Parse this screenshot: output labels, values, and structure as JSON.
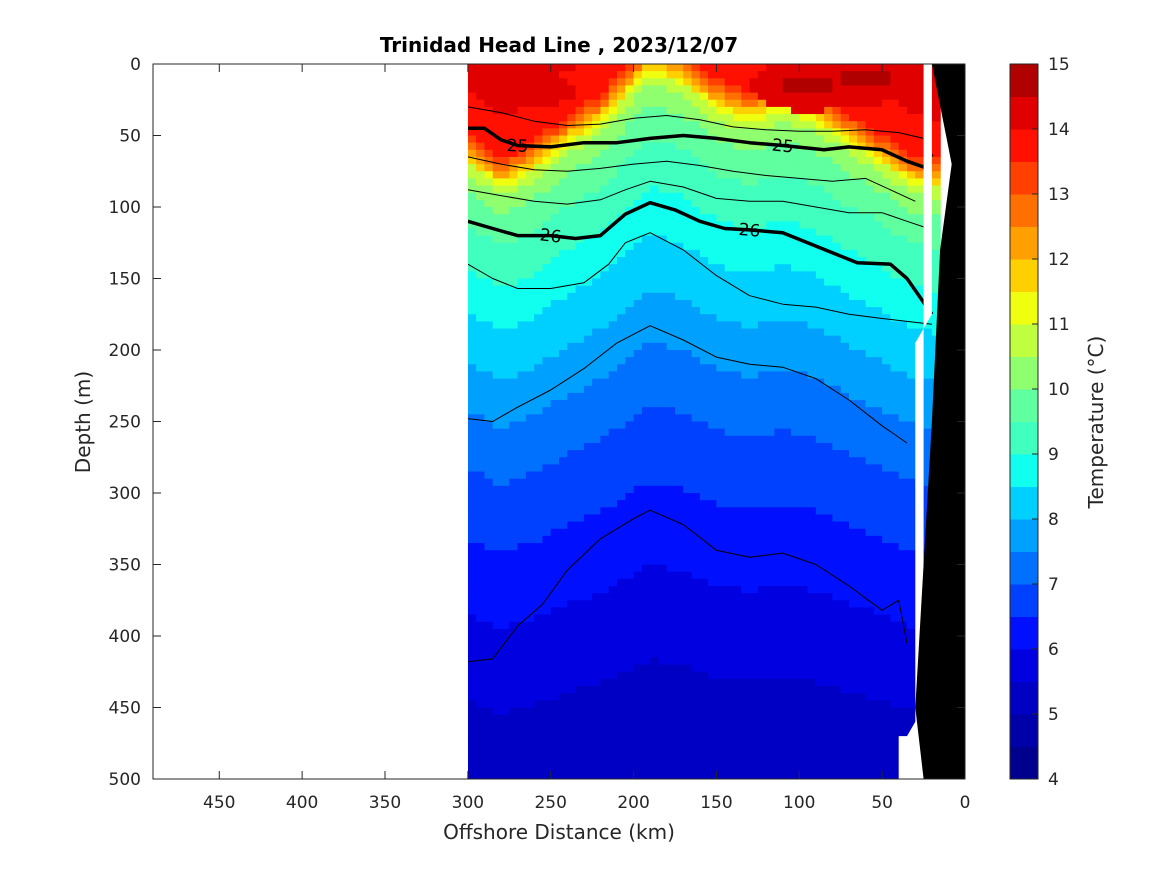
{
  "chart_data": {
    "type": "heatmap",
    "title": "Trinidad Head Line , 2023/12/07",
    "xlabel": "Offshore Distance (km)",
    "ylabel": "Depth (m)",
    "colorbar_label": "Temperature (°C)",
    "xlim": [
      490,
      0
    ],
    "ylim": [
      0,
      500
    ],
    "x_reversed": true,
    "y_reversed": true,
    "xticks": [
      450,
      400,
      350,
      300,
      250,
      200,
      150,
      100,
      50,
      0
    ],
    "yticks": [
      0,
      50,
      100,
      150,
      200,
      250,
      300,
      350,
      400,
      450,
      500
    ],
    "colorbar_range": [
      4,
      15
    ],
    "colorbar_ticks": [
      4,
      5,
      6,
      7,
      8,
      9,
      10,
      11,
      12,
      13,
      14,
      15
    ],
    "data_extent_km": [
      300,
      20
    ],
    "colormap_levels": [
      {
        "value": 4.0,
        "color": "#00008f"
      },
      {
        "value": 4.5,
        "color": "#0000a8"
      },
      {
        "value": 5.0,
        "color": "#0000c4"
      },
      {
        "value": 5.5,
        "color": "#0000e0"
      },
      {
        "value": 6.0,
        "color": "#0010ff"
      },
      {
        "value": 6.5,
        "color": "#0040ff"
      },
      {
        "value": 7.0,
        "color": "#0070ff"
      },
      {
        "value": 7.5,
        "color": "#00a0ff"
      },
      {
        "value": 8.0,
        "color": "#00d0ff"
      },
      {
        "value": 8.5,
        "color": "#10ffef"
      },
      {
        "value": 9.0,
        "color": "#40ffbf"
      },
      {
        "value": 9.5,
        "color": "#60ff9f"
      },
      {
        "value": 10.0,
        "color": "#90ff6f"
      },
      {
        "value": 10.5,
        "color": "#c0ff3f"
      },
      {
        "value": 11.0,
        "color": "#f0ff0f"
      },
      {
        "value": 11.5,
        "color": "#ffd000"
      },
      {
        "value": 12.0,
        "color": "#ffa000"
      },
      {
        "value": 12.5,
        "color": "#ff7000"
      },
      {
        "value": 13.0,
        "color": "#ff4000"
      },
      {
        "value": 13.5,
        "color": "#ff1000"
      },
      {
        "value": 14.0,
        "color": "#e00000"
      },
      {
        "value": 14.5,
        "color": "#b00000"
      }
    ],
    "temperature_profile": [
      {
        "depth": 0,
        "temp": 14.0
      },
      {
        "depth": 30,
        "temp": 13.6
      },
      {
        "depth": 40,
        "temp": 12.6
      },
      {
        "depth": 46,
        "temp": 11.8
      },
      {
        "depth": 52,
        "temp": 11.0
      },
      {
        "depth": 60,
        "temp": 10.4
      },
      {
        "depth": 75,
        "temp": 9.9
      },
      {
        "depth": 95,
        "temp": 9.5
      },
      {
        "depth": 120,
        "temp": 9.1
      },
      {
        "depth": 150,
        "temp": 8.6
      },
      {
        "depth": 180,
        "temp": 8.2
      },
      {
        "depth": 220,
        "temp": 7.6
      },
      {
        "depth": 260,
        "temp": 7.1
      },
      {
        "depth": 300,
        "temp": 6.7
      },
      {
        "depth": 350,
        "temp": 6.2
      },
      {
        "depth": 400,
        "temp": 5.8
      },
      {
        "depth": 450,
        "temp": 5.4
      },
      {
        "depth": 500,
        "temp": 5.0
      }
    ],
    "thermocline_offset": [
      {
        "x": 300,
        "dz": 20
      },
      {
        "x": 280,
        "dz": 40
      },
      {
        "x": 260,
        "dz": 25
      },
      {
        "x": 240,
        "dz": 5
      },
      {
        "x": 220,
        "dz": -10
      },
      {
        "x": 200,
        "dz": -35
      },
      {
        "x": 190,
        "dz": -45
      },
      {
        "x": 170,
        "dz": -38
      },
      {
        "x": 150,
        "dz": -20
      },
      {
        "x": 130,
        "dz": -12
      },
      {
        "x": 110,
        "dz": -20
      },
      {
        "x": 90,
        "dz": -12
      },
      {
        "x": 70,
        "dz": 5
      },
      {
        "x": 50,
        "dz": 20
      },
      {
        "x": 35,
        "dz": 35
      },
      {
        "x": 20,
        "dz": 40
      }
    ],
    "warm_patches": [
      {
        "x": 260,
        "depth": 18,
        "temp": 14.3
      },
      {
        "x": 95,
        "depth": 15,
        "temp": 14.6
      },
      {
        "x": 60,
        "depth": 10,
        "temp": 14.6
      }
    ],
    "sigma_contours": [
      {
        "label": "25",
        "bold": true,
        "points": [
          [
            300,
            45
          ],
          [
            290,
            45
          ],
          [
            280,
            53
          ],
          [
            270,
            57
          ],
          [
            250,
            58
          ],
          [
            230,
            55
          ],
          [
            210,
            55
          ],
          [
            190,
            52
          ],
          [
            170,
            50
          ],
          [
            150,
            52
          ],
          [
            130,
            55
          ],
          [
            110,
            57
          ],
          [
            85,
            60
          ],
          [
            70,
            58
          ],
          [
            50,
            60
          ],
          [
            35,
            68
          ],
          [
            25,
            72
          ],
          [
            20,
            63
          ]
        ]
      },
      {
        "label": "26",
        "bold": true,
        "points": [
          [
            300,
            110
          ],
          [
            285,
            115
          ],
          [
            270,
            120
          ],
          [
            250,
            120
          ],
          [
            235,
            122
          ],
          [
            220,
            120
          ],
          [
            205,
            105
          ],
          [
            190,
            97
          ],
          [
            175,
            102
          ],
          [
            160,
            110
          ],
          [
            145,
            115
          ],
          [
            130,
            116
          ],
          [
            110,
            118
          ],
          [
            95,
            125
          ],
          [
            80,
            132
          ],
          [
            65,
            139
          ],
          [
            45,
            140
          ],
          [
            35,
            150
          ],
          [
            20,
            175
          ]
        ]
      },
      {
        "label": "",
        "bold": false,
        "points": [
          [
            300,
            30
          ],
          [
            280,
            34
          ],
          [
            260,
            40
          ],
          [
            240,
            43
          ],
          [
            220,
            42
          ],
          [
            200,
            38
          ],
          [
            180,
            36
          ],
          [
            160,
            39
          ],
          [
            140,
            44
          ],
          [
            120,
            46
          ],
          [
            100,
            47
          ],
          [
            80,
            47
          ],
          [
            60,
            46
          ],
          [
            40,
            48
          ],
          [
            25,
            52
          ]
        ]
      },
      {
        "label": "",
        "bold": false,
        "points": [
          [
            300,
            65
          ],
          [
            280,
            70
          ],
          [
            260,
            74
          ],
          [
            240,
            75
          ],
          [
            220,
            73
          ],
          [
            200,
            70
          ],
          [
            180,
            68
          ],
          [
            160,
            71
          ],
          [
            140,
            75
          ],
          [
            120,
            78
          ],
          [
            100,
            80
          ],
          [
            80,
            82
          ],
          [
            60,
            80
          ],
          [
            45,
            88
          ],
          [
            30,
            96
          ]
        ]
      },
      {
        "label": "",
        "bold": false,
        "points": [
          [
            300,
            88
          ],
          [
            280,
            92
          ],
          [
            260,
            96
          ],
          [
            240,
            98
          ],
          [
            220,
            95
          ],
          [
            205,
            88
          ],
          [
            190,
            82
          ],
          [
            170,
            86
          ],
          [
            150,
            94
          ],
          [
            130,
            96
          ],
          [
            110,
            96
          ],
          [
            90,
            100
          ],
          [
            70,
            104
          ],
          [
            50,
            104
          ],
          [
            35,
            110
          ],
          [
            22,
            115
          ]
        ]
      },
      {
        "label": "",
        "bold": false,
        "points": [
          [
            300,
            140
          ],
          [
            285,
            150
          ],
          [
            270,
            157
          ],
          [
            250,
            157
          ],
          [
            230,
            153
          ],
          [
            215,
            140
          ],
          [
            205,
            125
          ],
          [
            190,
            118
          ],
          [
            170,
            130
          ],
          [
            150,
            148
          ],
          [
            130,
            162
          ],
          [
            110,
            168
          ],
          [
            90,
            170
          ],
          [
            70,
            175
          ],
          [
            50,
            178
          ],
          [
            35,
            180
          ],
          [
            20,
            182
          ]
        ]
      },
      {
        "label": "",
        "bold": false,
        "points": [
          [
            300,
            248
          ],
          [
            285,
            250
          ],
          [
            270,
            240
          ],
          [
            250,
            228
          ],
          [
            230,
            213
          ],
          [
            210,
            195
          ],
          [
            190,
            183
          ],
          [
            170,
            193
          ],
          [
            150,
            205
          ],
          [
            130,
            210
          ],
          [
            110,
            212
          ],
          [
            90,
            220
          ],
          [
            70,
            235
          ],
          [
            50,
            253
          ],
          [
            35,
            265
          ]
        ]
      },
      {
        "label": "",
        "bold": false,
        "points": [
          [
            300,
            418
          ],
          [
            285,
            416
          ],
          [
            270,
            393
          ],
          [
            255,
            378
          ],
          [
            240,
            354
          ],
          [
            220,
            332
          ],
          [
            200,
            318
          ],
          [
            190,
            312
          ],
          [
            170,
            322
          ],
          [
            150,
            340
          ],
          [
            130,
            345
          ],
          [
            110,
            342
          ],
          [
            90,
            350
          ],
          [
            70,
            365
          ],
          [
            50,
            382
          ],
          [
            40,
            375
          ],
          [
            35,
            405
          ]
        ]
      }
    ],
    "masks": [
      {
        "name": "no-data-region",
        "color": "#ffffff",
        "points": [
          [
            490,
            0
          ],
          [
            300,
            0
          ],
          [
            300,
            500
          ],
          [
            490,
            500
          ]
        ]
      },
      {
        "name": "shelf-white",
        "color": "#ffffff",
        "points": [
          [
            25,
            0
          ],
          [
            20,
            0
          ],
          [
            20,
            175
          ],
          [
            30,
            195
          ],
          [
            30,
            460
          ],
          [
            35,
            470
          ],
          [
            40,
            470
          ],
          [
            40,
            500
          ],
          [
            25,
            500
          ]
        ]
      },
      {
        "name": "seafloor",
        "color": "#000000",
        "points": [
          [
            20,
            0
          ],
          [
            0,
            0
          ],
          [
            0,
            500
          ],
          [
            25,
            500
          ],
          [
            30,
            450
          ],
          [
            20,
            250
          ],
          [
            15,
            130
          ],
          [
            8,
            70
          ]
        ]
      }
    ]
  }
}
